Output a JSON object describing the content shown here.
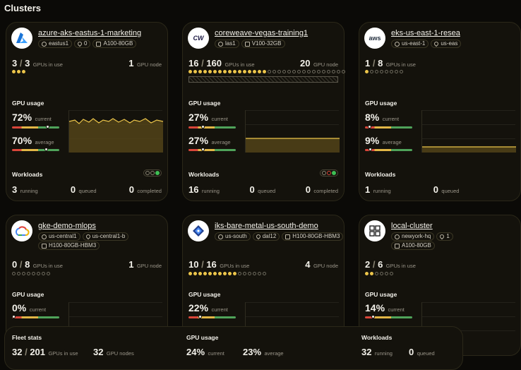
{
  "page_title": "Clusters",
  "labels": {
    "gpus_in_use": "GPUs in use",
    "gpu_node": "GPU node",
    "gpu_usage": "GPU usage",
    "current": "current",
    "average": "average",
    "workloads": "Workloads",
    "running": "running",
    "queued": "queued",
    "completed": "completed"
  },
  "clusters": [
    {
      "name": "azure-aks-eastus-1-marketing",
      "region": "eastus1",
      "zone": "0",
      "gpu_type": "A100-80GB",
      "gpus_used": "3",
      "gpus_total": "3",
      "gpu_nodes": "1",
      "current": "72%",
      "average": "70%",
      "running": "3",
      "queued": "0",
      "completed": "0",
      "logo": "azure-logo"
    },
    {
      "name": "coreweave-vegas-training1",
      "region": "las1",
      "gpu_type": "V100-32GB",
      "gpus_used": "16",
      "gpus_total": "160",
      "gpu_nodes": "20",
      "current": "27%",
      "average": "27%",
      "running": "16",
      "queued": "0",
      "completed": "0",
      "logo": "coreweave-logo",
      "logo_text": "CW"
    },
    {
      "name": "eks-us-east-1-resea",
      "region": "us-east-1",
      "zone": "us-eas",
      "gpus_used": "1",
      "gpus_total": "8",
      "current": "8%",
      "average": "9%",
      "running": "1",
      "queued": "0",
      "logo": "aws-logo",
      "logo_text": "aws"
    },
    {
      "name": "gke-demo-mlops",
      "region": "us-central1",
      "zone": "us-central1-b",
      "gpu_type": "H100-80GB-HBM3",
      "gpus_used": "0",
      "gpus_total": "8",
      "gpu_nodes": "1",
      "current": "0%",
      "logo": "google-cloud-logo"
    },
    {
      "name": "iks-bare-metal-us-south-demo",
      "region": "us-south",
      "zone": "dal12",
      "gpu_type": "H100-80GB-HBM3",
      "gpus_used": "10",
      "gpus_total": "16",
      "gpu_nodes": "4",
      "current": "22%",
      "logo": "ibm-cloud-logo"
    },
    {
      "name": "local-cluster",
      "region": "newyork-hq",
      "zone": "1",
      "gpu_type": "A100-80GB",
      "gpus_used": "2",
      "gpus_total": "6",
      "current": "14%",
      "logo": "local-logo"
    }
  ],
  "fleet": {
    "title": "Fleet stats",
    "gpus_used": "32",
    "gpus_total": "201",
    "gpus_in_use_label": "GPUs in use",
    "gpu_nodes": "32",
    "gpu_nodes_label": "GPU nodes",
    "usage_title": "GPU usage",
    "current": "24%",
    "current_label": "current",
    "average": "23%",
    "average_label": "average",
    "workloads_title": "Workloads",
    "running": "32",
    "running_label": "running",
    "queued": "0",
    "queued_label": "queued"
  },
  "colors": {
    "accent": "#ecc54a",
    "green": "#3fbf55",
    "red": "#d9463a"
  }
}
